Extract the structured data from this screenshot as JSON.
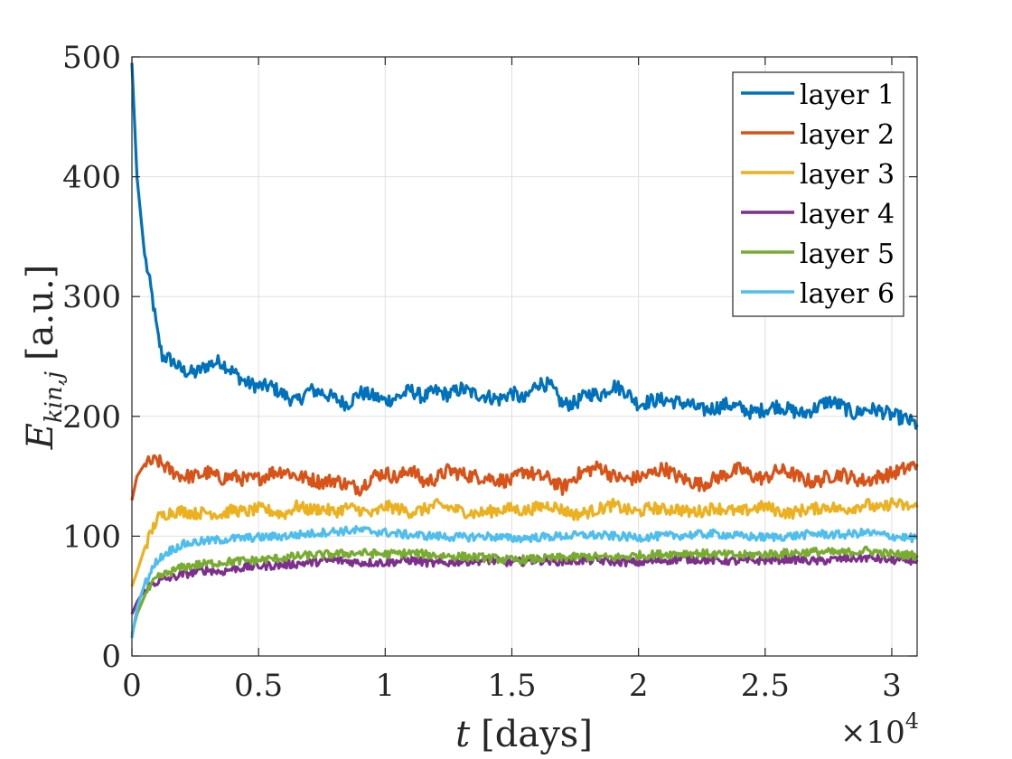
{
  "chart_data": {
    "type": "line",
    "title": "",
    "xlabel_var": "t",
    "xlabel_unit": "[days]",
    "ylabel_main": "E",
    "ylabel_sub": "kin,j",
    "ylabel_unit": "[a.u.]",
    "x_multiplier": {
      "times": "×10",
      "exponent": "4"
    },
    "xlim": [
      0,
      3.1
    ],
    "ylim": [
      0,
      500
    ],
    "xticks": [
      0,
      0.5,
      1,
      1.5,
      2,
      2.5,
      3
    ],
    "xtick_labels": [
      "0",
      "0.5",
      "1",
      "1.5",
      "2",
      "2.5",
      "3"
    ],
    "yticks": [
      0,
      100,
      200,
      300,
      400,
      500
    ],
    "ytick_labels": [
      "0",
      "100",
      "200",
      "300",
      "400",
      "500"
    ],
    "grid": true,
    "legend_position": "top-right",
    "series": [
      {
        "name": "layer 1",
        "color": "#0072BD",
        "x": [
          0,
          0.02,
          0.05,
          0.08,
          0.1,
          0.12,
          0.15,
          0.2,
          0.25,
          0.3,
          0.35,
          0.4,
          0.45,
          0.5,
          0.55,
          0.6,
          0.65,
          0.7,
          0.75,
          0.8,
          0.85,
          0.9,
          0.95,
          1.0,
          1.05,
          1.1,
          1.15,
          1.2,
          1.25,
          1.3,
          1.35,
          1.4,
          1.45,
          1.5,
          1.55,
          1.6,
          1.65,
          1.7,
          1.75,
          1.8,
          1.85,
          1.9,
          1.95,
          2.0,
          2.05,
          2.1,
          2.15,
          2.2,
          2.25,
          2.3,
          2.35,
          2.4,
          2.45,
          2.5,
          2.55,
          2.6,
          2.65,
          2.7,
          2.75,
          2.8,
          2.85,
          2.9,
          2.95,
          3.0,
          3.05,
          3.1
        ],
        "y": [
          495,
          400,
          335,
          300,
          270,
          250,
          248,
          238,
          236,
          243,
          246,
          237,
          228,
          225,
          225,
          218,
          212,
          222,
          220,
          215,
          210,
          220,
          217,
          213,
          216,
          222,
          216,
          221,
          218,
          223,
          219,
          217,
          214,
          220,
          213,
          228,
          226,
          210,
          211,
          219,
          218,
          226,
          221,
          210,
          213,
          214,
          212,
          210,
          205,
          207,
          210,
          207,
          203,
          206,
          209,
          205,
          202,
          207,
          213,
          209,
          202,
          206,
          205,
          201,
          198,
          193
        ]
      },
      {
        "name": "layer 2",
        "color": "#D95319",
        "x": [
          0,
          0.02,
          0.05,
          0.1,
          0.15,
          0.2,
          0.25,
          0.3,
          0.35,
          0.4,
          0.45,
          0.5,
          0.55,
          0.6,
          0.65,
          0.7,
          0.75,
          0.8,
          0.85,
          0.9,
          0.95,
          1.0,
          1.05,
          1.1,
          1.15,
          1.2,
          1.25,
          1.3,
          1.35,
          1.4,
          1.45,
          1.5,
          1.55,
          1.6,
          1.65,
          1.7,
          1.75,
          1.8,
          1.85,
          1.9,
          1.95,
          2.0,
          2.05,
          2.1,
          2.15,
          2.2,
          2.25,
          2.3,
          2.35,
          2.4,
          2.45,
          2.5,
          2.55,
          2.6,
          2.65,
          2.7,
          2.75,
          2.8,
          2.85,
          2.9,
          2.95,
          3.0,
          3.05,
          3.1
        ],
        "y": [
          130,
          150,
          160,
          163,
          155,
          150,
          150,
          153,
          148,
          150,
          147,
          148,
          153,
          155,
          150,
          148,
          145,
          147,
          143,
          140,
          150,
          153,
          148,
          157,
          145,
          148,
          155,
          152,
          150,
          149,
          147,
          146,
          155,
          150,
          148,
          140,
          150,
          155,
          158,
          150,
          147,
          149,
          152,
          157,
          150,
          146,
          143,
          148,
          152,
          156,
          150,
          148,
          155,
          153,
          147,
          145,
          150,
          152,
          148,
          146,
          150,
          152,
          156,
          160
        ]
      },
      {
        "name": "layer 3",
        "color": "#EDB120",
        "x": [
          0,
          0.02,
          0.05,
          0.08,
          0.1,
          0.15,
          0.2,
          0.25,
          0.3,
          0.35,
          0.4,
          0.45,
          0.5,
          0.55,
          0.6,
          0.65,
          0.7,
          0.75,
          0.8,
          0.85,
          0.9,
          0.95,
          1.0,
          1.05,
          1.1,
          1.15,
          1.2,
          1.25,
          1.3,
          1.35,
          1.4,
          1.45,
          1.5,
          1.55,
          1.6,
          1.65,
          1.7,
          1.75,
          1.8,
          1.85,
          1.9,
          1.95,
          2.0,
          2.05,
          2.1,
          2.15,
          2.2,
          2.25,
          2.3,
          2.35,
          2.4,
          2.45,
          2.5,
          2.55,
          2.6,
          2.65,
          2.7,
          2.75,
          2.8,
          2.85,
          2.9,
          2.95,
          3.0,
          3.05,
          3.1
        ],
        "y": [
          58,
          70,
          90,
          105,
          115,
          120,
          121,
          119,
          120,
          118,
          122,
          120,
          123,
          121,
          118,
          125,
          122,
          123,
          120,
          124,
          122,
          118,
          125,
          123,
          120,
          122,
          126,
          124,
          121,
          119,
          120,
          122,
          123,
          121,
          124,
          126,
          122,
          118,
          120,
          123,
          126,
          122,
          120,
          124,
          122,
          123,
          120,
          121,
          124,
          122,
          120,
          123,
          125,
          121,
          119,
          122,
          123,
          125,
          122,
          124,
          127,
          122,
          128,
          125,
          124
        ]
      },
      {
        "name": "layer 4",
        "color": "#7E2F8E",
        "x": [
          0,
          0.02,
          0.05,
          0.08,
          0.1,
          0.15,
          0.2,
          0.25,
          0.3,
          0.35,
          0.4,
          0.5,
          0.6,
          0.7,
          0.8,
          0.9,
          1.0,
          1.1,
          1.2,
          1.3,
          1.4,
          1.5,
          1.6,
          1.7,
          1.8,
          1.9,
          2.0,
          2.1,
          2.2,
          2.3,
          2.4,
          2.5,
          2.6,
          2.7,
          2.8,
          2.9,
          3.0,
          3.1
        ],
        "y": [
          35,
          45,
          55,
          60,
          62,
          65,
          68,
          70,
          72,
          70,
          73,
          75,
          76,
          78,
          80,
          78,
          78,
          80,
          77,
          79,
          80,
          78,
          80,
          79,
          80,
          79,
          78,
          80,
          81,
          80,
          79,
          80,
          81,
          79,
          81,
          82,
          80,
          80
        ]
      },
      {
        "name": "layer 5",
        "color": "#77AC30",
        "x": [
          0,
          0.02,
          0.05,
          0.08,
          0.1,
          0.15,
          0.2,
          0.25,
          0.3,
          0.35,
          0.4,
          0.5,
          0.6,
          0.7,
          0.8,
          0.9,
          1.0,
          1.1,
          1.2,
          1.3,
          1.4,
          1.5,
          1.6,
          1.7,
          1.8,
          1.9,
          2.0,
          2.1,
          2.2,
          2.3,
          2.4,
          2.5,
          2.6,
          2.7,
          2.8,
          2.9,
          3.0,
          3.1
        ],
        "y": [
          18,
          35,
          50,
          60,
          65,
          70,
          74,
          76,
          77,
          78,
          79,
          80,
          82,
          84,
          85,
          86,
          85,
          86,
          84,
          83,
          82,
          80,
          81,
          82,
          83,
          82,
          84,
          85,
          86,
          85,
          84,
          85,
          86,
          87,
          86,
          88,
          85,
          84
        ]
      },
      {
        "name": "layer 6",
        "color": "#4DBEEE",
        "x": [
          0,
          0.02,
          0.05,
          0.08,
          0.1,
          0.15,
          0.2,
          0.25,
          0.3,
          0.35,
          0.4,
          0.5,
          0.6,
          0.7,
          0.8,
          0.9,
          1.0,
          1.1,
          1.2,
          1.3,
          1.4,
          1.5,
          1.6,
          1.7,
          1.8,
          1.9,
          2.0,
          2.1,
          2.2,
          2.3,
          2.4,
          2.5,
          2.6,
          2.7,
          2.8,
          2.9,
          3.0,
          3.1
        ],
        "y": [
          15,
          40,
          60,
          72,
          80,
          88,
          93,
          95,
          96,
          97,
          98,
          99,
          100,
          102,
          104,
          105,
          103,
          101,
          100,
          99,
          100,
          98,
          99,
          100,
          101,
          100,
          99,
          100,
          101,
          102,
          100,
          99,
          100,
          102,
          101,
          103,
          100,
          98
        ]
      }
    ]
  }
}
